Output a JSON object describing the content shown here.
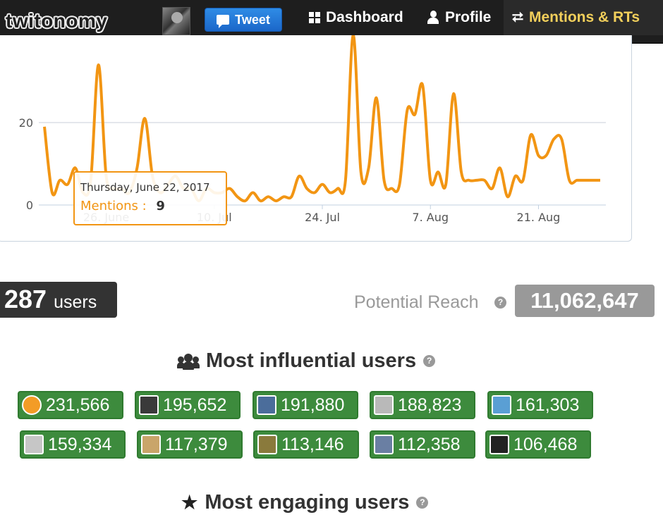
{
  "navbar": {
    "logo_text": "twitonomy",
    "tweet_label": "Tweet",
    "items": [
      {
        "label": "Dashboard",
        "icon": "grid-icon"
      },
      {
        "label": "Profile",
        "icon": "person-icon"
      },
      {
        "label": "Mentions & RTs",
        "icon": "retweet-icon",
        "active": true
      }
    ],
    "active_color": "#f2cf5b"
  },
  "chart_data": {
    "type": "line",
    "series": [
      {
        "name": "Mentions",
        "color": "#f29513",
        "x": [
          "2017-06-18",
          "2017-06-19",
          "2017-06-20",
          "2017-06-21",
          "2017-06-22",
          "2017-06-23",
          "2017-06-24",
          "2017-06-25",
          "2017-06-26",
          "2017-06-27",
          "2017-06-28",
          "2017-06-29",
          "2017-06-30",
          "2017-07-01",
          "2017-07-02",
          "2017-07-03",
          "2017-07-04",
          "2017-07-05",
          "2017-07-06",
          "2017-07-07",
          "2017-07-08",
          "2017-07-09",
          "2017-07-10",
          "2017-07-11",
          "2017-07-12",
          "2017-07-13",
          "2017-07-14",
          "2017-07-15",
          "2017-07-16",
          "2017-07-17",
          "2017-07-18",
          "2017-07-19",
          "2017-07-20",
          "2017-07-21",
          "2017-07-22",
          "2017-07-23",
          "2017-07-24",
          "2017-07-25",
          "2017-07-26",
          "2017-07-27",
          "2017-07-28",
          "2017-07-29",
          "2017-07-30",
          "2017-07-31",
          "2017-08-01",
          "2017-08-02",
          "2017-08-03",
          "2017-08-04",
          "2017-08-05",
          "2017-08-06",
          "2017-08-07",
          "2017-08-08",
          "2017-08-09",
          "2017-08-10",
          "2017-08-11",
          "2017-08-12",
          "2017-08-13",
          "2017-08-14",
          "2017-08-15",
          "2017-08-16",
          "2017-08-17",
          "2017-08-18",
          "2017-08-19",
          "2017-08-20",
          "2017-08-21",
          "2017-08-22",
          "2017-08-23",
          "2017-08-24",
          "2017-08-25",
          "2017-08-26",
          "2017-08-27",
          "2017-08-28",
          "2017-08-29"
        ],
        "values": [
          19,
          3,
          6,
          5,
          9,
          3,
          6,
          34,
          7,
          4,
          4,
          3,
          9,
          21,
          7,
          3,
          5,
          7,
          4,
          4,
          1,
          4,
          3,
          3,
          4,
          2,
          1,
          3,
          1,
          2,
          1,
          2,
          2,
          7,
          4,
          3,
          5,
          3,
          4,
          6,
          45,
          8,
          9,
          26,
          6,
          4,
          5,
          23,
          22,
          29,
          6,
          8,
          5,
          27,
          8,
          6,
          6,
          6,
          4,
          9,
          2,
          7,
          6,
          17,
          12,
          12,
          16,
          16,
          6,
          6,
          6,
          6,
          6
        ]
      }
    ],
    "x_tick_labels": [
      "26. June",
      "10. Jul",
      "24. Jul",
      "7. Aug",
      "21. Aug"
    ],
    "y_tick_labels": [
      "0",
      "20"
    ],
    "ylim": [
      0,
      40
    ],
    "grid": true,
    "tooltip": {
      "date": "Thursday, June 22, 2017",
      "series": "Mentions",
      "value": "9"
    }
  },
  "stats": {
    "users_count": "287",
    "users_unit": "users",
    "reach_label": "Potential Reach",
    "reach_value": "11,062,647"
  },
  "influential": {
    "title": "Most influential users",
    "users": [
      {
        "followers": "231,566",
        "avatar_color": "#f39c26"
      },
      {
        "followers": "195,652",
        "avatar_color": "#3a3a3a"
      },
      {
        "followers": "191,880",
        "avatar_color": "#4b6d9b"
      },
      {
        "followers": "188,823",
        "avatar_color": "#b9b9b9"
      },
      {
        "followers": "161,303",
        "avatar_color": "#5a9fd4"
      },
      {
        "followers": "159,334",
        "avatar_color": "#c6c6c6"
      },
      {
        "followers": "117,379",
        "avatar_color": "#c9a56a"
      },
      {
        "followers": "113,146",
        "avatar_color": "#8a7a3c"
      },
      {
        "followers": "112,358",
        "avatar_color": "#6a7fa3"
      },
      {
        "followers": "106,468",
        "avatar_color": "#222222"
      }
    ]
  },
  "engaging": {
    "title": "Most engaging users"
  }
}
